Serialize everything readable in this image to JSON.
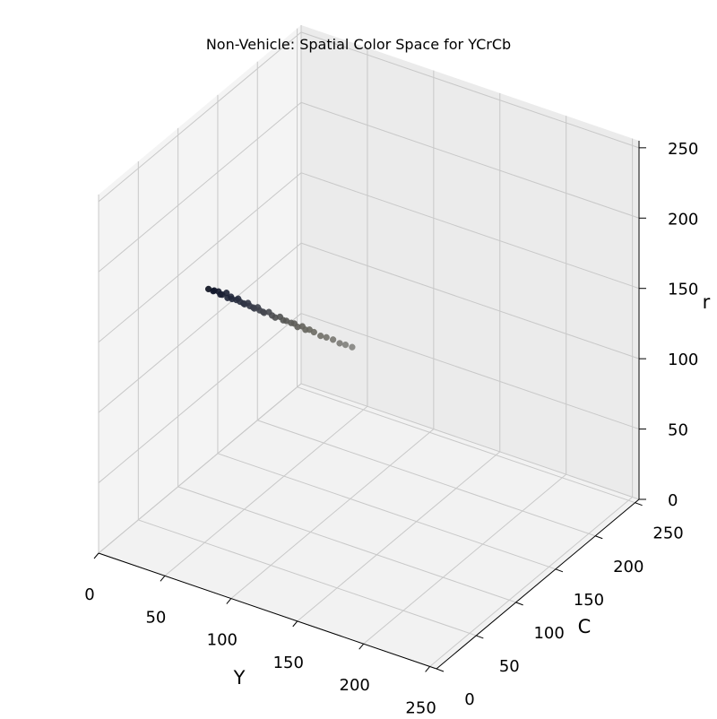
{
  "chart_data": {
    "type": "scatter",
    "projection": "3d",
    "title": "Non-Vehicle: Spatial Color Space for YCrCb",
    "xlabel": "Y",
    "ylabel": "C",
    "zlabel": "r",
    "xlim": [
      0,
      255
    ],
    "ylim": [
      0,
      255
    ],
    "zlim": [
      0,
      255
    ],
    "xticks": [
      "0",
      "50",
      "100",
      "150",
      "200",
      "250"
    ],
    "yticks": [
      "0",
      "50",
      "100",
      "150",
      "200",
      "250"
    ],
    "zticks": [
      "0",
      "50",
      "100",
      "150",
      "200",
      "250"
    ],
    "grid": true,
    "legend": "none",
    "point_color_note": "each point colored by its own pixel color (dark navy to gray)",
    "points": [
      {
        "y_val": 5,
        "cr": 128,
        "cb": 130,
        "color": "#0b0f1e"
      },
      {
        "y_val": 8,
        "cr": 127,
        "cb": 131,
        "color": "#10152a"
      },
      {
        "y_val": 10,
        "cr": 129,
        "cb": 129,
        "color": "#12182c"
      },
      {
        "y_val": 12,
        "cr": 128,
        "cb": 131,
        "color": "#151a2e"
      },
      {
        "y_val": 14,
        "cr": 127,
        "cb": 130,
        "color": "#171c30"
      },
      {
        "y_val": 16,
        "cr": 128,
        "cb": 129,
        "color": "#1a1f33"
      },
      {
        "y_val": 18,
        "cr": 129,
        "cb": 131,
        "color": "#1c2236"
      },
      {
        "y_val": 20,
        "cr": 127,
        "cb": 129,
        "color": "#1e2438"
      },
      {
        "y_val": 22,
        "cr": 128,
        "cb": 130,
        "color": "#20263a"
      },
      {
        "y_val": 24,
        "cr": 128,
        "cb": 128,
        "color": "#22283b"
      },
      {
        "y_val": 26,
        "cr": 127,
        "cb": 130,
        "color": "#252b3d"
      },
      {
        "y_val": 28,
        "cr": 129,
        "cb": 129,
        "color": "#272d3f"
      },
      {
        "y_val": 30,
        "cr": 128,
        "cb": 128,
        "color": "#2a2f40"
      },
      {
        "y_val": 32,
        "cr": 127,
        "cb": 129,
        "color": "#2c3242"
      },
      {
        "y_val": 34,
        "cr": 128,
        "cb": 127,
        "color": "#2f3444"
      },
      {
        "y_val": 36,
        "cr": 129,
        "cb": 128,
        "color": "#323645"
      },
      {
        "y_val": 38,
        "cr": 128,
        "cb": 127,
        "color": "#343847"
      },
      {
        "y_val": 40,
        "cr": 127,
        "cb": 128,
        "color": "#373b48"
      },
      {
        "y_val": 42,
        "cr": 128,
        "cb": 126,
        "color": "#3a3e4a"
      },
      {
        "y_val": 44,
        "cr": 129,
        "cb": 127,
        "color": "#3c404b"
      },
      {
        "y_val": 46,
        "cr": 128,
        "cb": 126,
        "color": "#3f424c"
      },
      {
        "y_val": 48,
        "cr": 127,
        "cb": 127,
        "color": "#42454e"
      },
      {
        "y_val": 50,
        "cr": 128,
        "cb": 125,
        "color": "#45474f"
      },
      {
        "y_val": 53,
        "cr": 129,
        "cb": 126,
        "color": "#484a50"
      },
      {
        "y_val": 56,
        "cr": 128,
        "cb": 125,
        "color": "#4b4c50"
      },
      {
        "y_val": 59,
        "cr": 128,
        "cb": 124,
        "color": "#4e4f51"
      },
      {
        "y_val": 62,
        "cr": 129,
        "cb": 125,
        "color": "#515252"
      },
      {
        "y_val": 65,
        "cr": 128,
        "cb": 124,
        "color": "#545553"
      },
      {
        "y_val": 68,
        "cr": 129,
        "cb": 123,
        "color": "#575754"
      },
      {
        "y_val": 71,
        "cr": 128,
        "cb": 124,
        "color": "#5a5a56"
      },
      {
        "y_val": 74,
        "cr": 129,
        "cb": 123,
        "color": "#5d5c57"
      },
      {
        "y_val": 77,
        "cr": 128,
        "cb": 122,
        "color": "#605f59"
      },
      {
        "y_val": 80,
        "cr": 129,
        "cb": 123,
        "color": "#63625b"
      },
      {
        "y_val": 83,
        "cr": 128,
        "cb": 122,
        "color": "#66655e"
      },
      {
        "y_val": 86,
        "cr": 129,
        "cb": 122,
        "color": "#696860"
      },
      {
        "y_val": 90,
        "cr": 129,
        "cb": 121,
        "color": "#6c6b63"
      },
      {
        "y_val": 95,
        "cr": 128,
        "cb": 121,
        "color": "#706f68"
      },
      {
        "y_val": 100,
        "cr": 129,
        "cb": 120,
        "color": "#74736c"
      },
      {
        "y_val": 105,
        "cr": 129,
        "cb": 120,
        "color": "#787771"
      },
      {
        "y_val": 110,
        "cr": 128,
        "cb": 120,
        "color": "#7c7b76"
      },
      {
        "y_val": 115,
        "cr": 129,
        "cb": 119,
        "color": "#80807c"
      },
      {
        "y_val": 120,
        "cr": 129,
        "cb": 119,
        "color": "#858581"
      }
    ]
  }
}
